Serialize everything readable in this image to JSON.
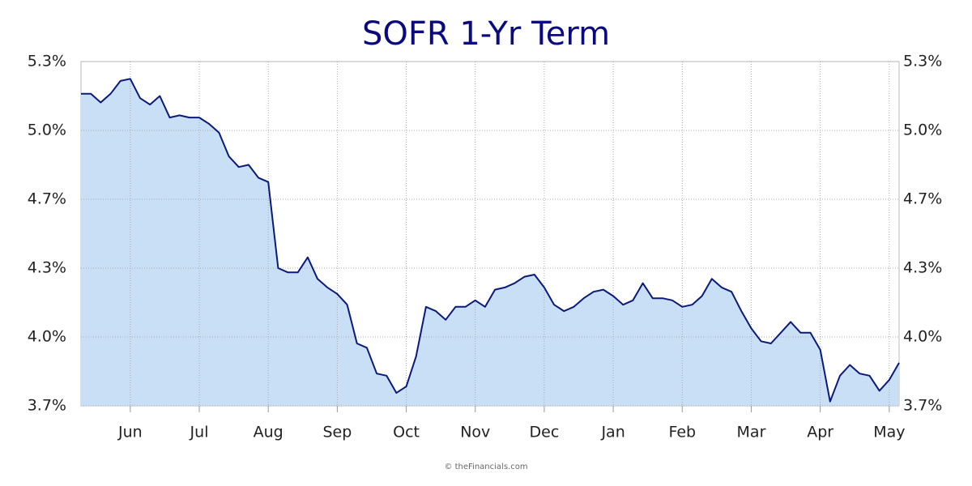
{
  "chart_data": {
    "type": "area-line",
    "title": "SOFR 1-Yr Term",
    "footer": "© theFinancials.com",
    "categories": [
      null,
      null,
      null,
      null,
      null,
      "Jun",
      null,
      null,
      null,
      null,
      null,
      null,
      "Jul",
      null,
      null,
      null,
      null,
      null,
      null,
      "Aug",
      null,
      null,
      null,
      null,
      null,
      null,
      "Sep",
      null,
      null,
      null,
      null,
      null,
      null,
      "Oct",
      null,
      null,
      null,
      null,
      null,
      null,
      "Nov",
      null,
      null,
      null,
      null,
      null,
      null,
      "Dec",
      null,
      null,
      null,
      null,
      null,
      null,
      "Jan",
      null,
      null,
      null,
      null,
      null,
      null,
      "Feb",
      null,
      null,
      null,
      null,
      null,
      null,
      "Mar",
      null,
      null,
      null,
      null,
      null,
      null,
      "Apr",
      null,
      null,
      null,
      null,
      null,
      null,
      "May",
      null
    ],
    "series": [
      {
        "name": "SOFR 1-Yr Term",
        "color": "#0a1a7a",
        "fill": "#c9dff5",
        "values": [
          5.15,
          5.15,
          5.11,
          5.15,
          5.21,
          5.22,
          5.13,
          5.1,
          5.14,
          5.04,
          5.05,
          5.04,
          5.04,
          5.01,
          4.97,
          4.86,
          4.81,
          4.82,
          4.76,
          4.74,
          4.34,
          4.32,
          4.32,
          4.39,
          4.29,
          4.25,
          4.22,
          4.17,
          3.99,
          3.97,
          3.85,
          3.84,
          3.76,
          3.79,
          3.93,
          4.16,
          4.14,
          4.1,
          4.16,
          4.16,
          4.19,
          4.16,
          4.24,
          4.25,
          4.27,
          4.3,
          4.31,
          4.25,
          4.17,
          4.14,
          4.16,
          4.2,
          4.23,
          4.24,
          4.21,
          4.17,
          4.19,
          4.27,
          4.2,
          4.2,
          4.19,
          4.16,
          4.17,
          4.21,
          4.29,
          4.25,
          4.23,
          4.14,
          4.06,
          4.0,
          3.99,
          4.04,
          4.09,
          4.04,
          4.04,
          3.96,
          3.72,
          3.84,
          3.89,
          3.85,
          3.84,
          3.77,
          3.82,
          3.9
        ]
      }
    ],
    "ylim": [
      3.7,
      5.3
    ],
    "yticks": [
      {
        "value": 3.7,
        "label": "3.7%"
      },
      {
        "value": 4.02,
        "label": "4.0%"
      },
      {
        "value": 4.34,
        "label": "4.3%"
      },
      {
        "value": 4.66,
        "label": "4.7%"
      },
      {
        "value": 4.98,
        "label": "5.0%"
      },
      {
        "value": 5.3,
        "label": "5.3%"
      }
    ],
    "grid": true,
    "title_color": "#0a0a80"
  }
}
